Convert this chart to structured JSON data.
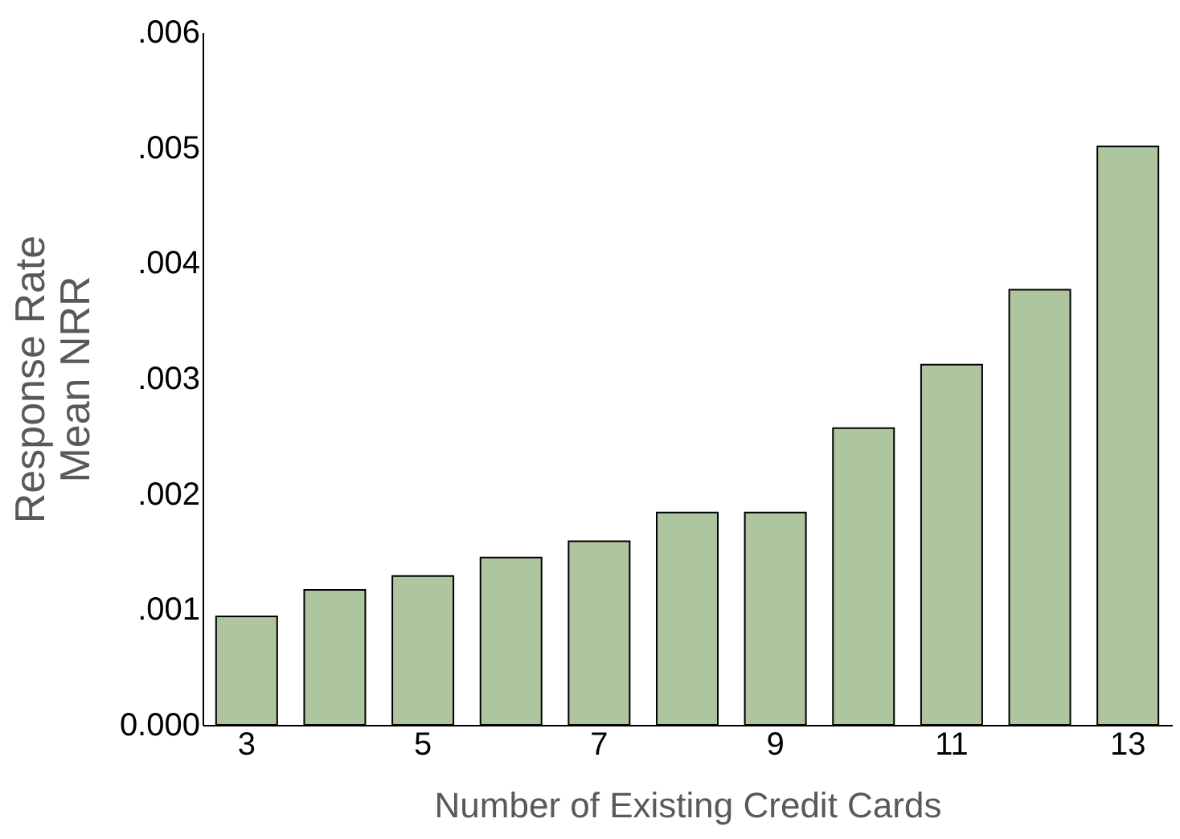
{
  "chart_data": {
    "type": "bar",
    "xlabel": "Number of Existing Credit Cards",
    "ylabel": "Response Rate\nMean NRR",
    "categories": [
      "3",
      null,
      "5",
      null,
      "7",
      null,
      "9",
      null,
      "11",
      null,
      "13"
    ],
    "values": [
      0.00094,
      0.00117,
      0.00129,
      0.00145,
      0.00159,
      0.00184,
      0.00184,
      0.00257,
      0.00312,
      0.00377,
      0.00501
    ],
    "color": "#adc69f",
    "ylim": [
      0,
      0.006
    ],
    "yticks": [
      {
        "value": 0,
        "label": "0.000"
      },
      {
        "value": 0.001,
        "label": ".001"
      },
      {
        "value": 0.002,
        "label": ".002"
      },
      {
        "value": 0.003,
        "label": ".003"
      },
      {
        "value": 0.004,
        "label": ".004"
      },
      {
        "value": 0.005,
        "label": ".005"
      },
      {
        "value": 0.006,
        "label": ".006"
      }
    ],
    "grid": false
  }
}
